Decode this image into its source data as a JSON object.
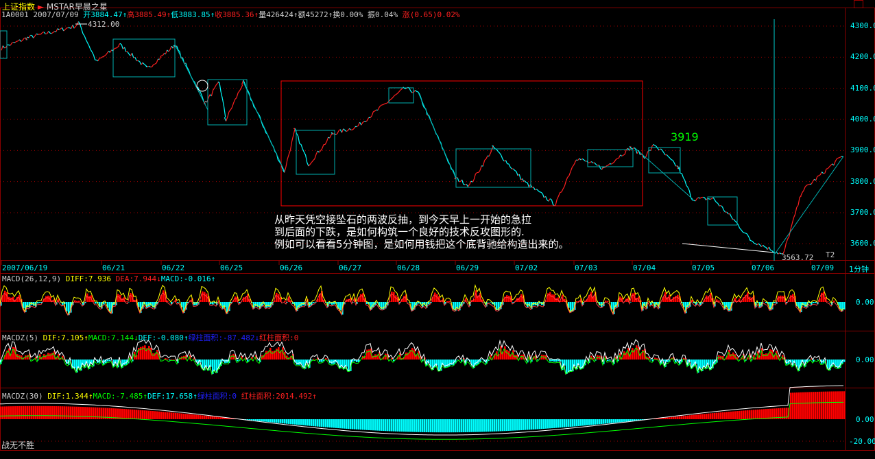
{
  "header": {
    "index_name": "上证指数",
    "formula": "MSTAR早晨之星",
    "code": "1A0001",
    "date": "2007/07/09",
    "open_label": "开",
    "open": "3884.47",
    "high_label": "高",
    "high": "3885.49",
    "low_label": "低",
    "low": "3883.85",
    "close_label": "收",
    "close": "3885.36",
    "vol_label": "量",
    "vol": "426424",
    "amt_label": "额",
    "amt": "45272",
    "turnover": "换0.00%",
    "amplitude": "振0.04%",
    "change": "涨(0.65)0.02%",
    "up_arrow": "↑",
    "down_arrow": "↓"
  },
  "main_chart": {
    "price_axis": [
      "4300.0",
      "4200.0",
      "4100.0",
      "4000.0",
      "3900.0",
      "3800.0",
      "3700.0",
      "3600.0"
    ],
    "high_marker": "4312.00",
    "low_marker": "3563.72",
    "annotation_3919": "3919",
    "t2_label": "T2",
    "period": "1分钟",
    "note_lines": [
      "从昨天凭空接坠石的两波反抽，到今天早上一开始的急拉",
      "到后面的下跌，是如何构筑一个良好的技术反攻图形的.",
      "例如可以看看5分钟图，是如何用钱把这个底背驰给构造出来的。"
    ]
  },
  "date_axis": [
    "2007/06/19",
    "06/21",
    "06/22",
    "06/25",
    "06/26",
    "06/27",
    "06/28",
    "06/29",
    "07/02",
    "07/03",
    "07/04",
    "07/05",
    "07/06",
    "07/09"
  ],
  "macd": {
    "name": "MACD(26,12,9)",
    "diff": "DIFF:7.936",
    "dea": "DEA:7.944",
    "macd": "MACD:-0.016",
    "axis": "0.00"
  },
  "macdz5": {
    "name": "MACDZ(5)",
    "dif": "DIF:7.105",
    "macd": "MACD:7.144",
    "def": "DEF:-0.080",
    "green_area": "绿柱面积:-87.482",
    "red_area": "红柱面积:0",
    "axis": "0.00"
  },
  "macdz30": {
    "name": "MACDZ(30)",
    "dif": "DIF:1.344",
    "macd": "MACD:-7.485",
    "def": "DEF:17.658",
    "green_area": "绿柱面积:0",
    "red_area": "红柱面积:2014.492",
    "axis0": "0.00",
    "axis1": "-20.00"
  },
  "footer": {
    "motto": "战无不胜"
  },
  "chart_data": {
    "type": "line",
    "title": "上证指数 1分钟",
    "ylim": [
      3540,
      4330
    ],
    "series": [
      {
        "points": [
          {
            "day": "2007/06/19",
            "frac": 0.0,
            "price": 4229
          },
          {
            "day": "2007/06/19",
            "frac": 0.26,
            "price": 4262
          },
          {
            "day": "2007/06/19",
            "frac": 0.74,
            "price": 4300
          },
          {
            "day": "2007/06/19",
            "frac": 0.77,
            "price": 4312
          },
          {
            "day": "2007/06/19",
            "frac": 0.95,
            "price": 4185
          },
          {
            "day": "06/21",
            "frac": 0.31,
            "price": 4240
          },
          {
            "day": "06/21",
            "frac": 0.77,
            "price": 4163
          },
          {
            "day": "06/22",
            "frac": 0.24,
            "price": 4240
          },
          {
            "day": "06/22",
            "frac": 0.76,
            "price": 4053
          },
          {
            "day": "06/25",
            "frac": 0.0,
            "price": 4119
          },
          {
            "day": "06/25",
            "frac": 0.11,
            "price": 3998
          },
          {
            "day": "06/25",
            "frac": 0.4,
            "price": 4119
          },
          {
            "day": "06/26",
            "frac": 0.09,
            "price": 3832
          },
          {
            "day": "06/26",
            "frac": 0.27,
            "price": 3965
          },
          {
            "day": "06/26",
            "frac": 0.5,
            "price": 3855
          },
          {
            "day": "06/26",
            "frac": 0.91,
            "price": 3954
          },
          {
            "day": "06/27",
            "frac": 0.32,
            "price": 3976
          },
          {
            "day": "06/28",
            "frac": 0.14,
            "price": 4100
          },
          {
            "day": "06/28",
            "frac": 0.37,
            "price": 4085
          },
          {
            "day": "06/29",
            "frac": 0.01,
            "price": 3810
          },
          {
            "day": "06/29",
            "frac": 0.24,
            "price": 3788
          },
          {
            "day": "06/29",
            "frac": 0.65,
            "price": 3910
          },
          {
            "day": "07/02",
            "frac": 0.17,
            "price": 3799
          },
          {
            "day": "07/02",
            "frac": 0.69,
            "price": 3726
          },
          {
            "day": "07/03",
            "frac": 0.04,
            "price": 3876
          },
          {
            "day": "07/03",
            "frac": 0.51,
            "price": 3843
          },
          {
            "day": "07/03",
            "frac": 0.98,
            "price": 3910
          },
          {
            "day": "07/04",
            "frac": 0.21,
            "price": 3880
          },
          {
            "day": "07/04",
            "frac": 0.38,
            "price": 3919
          },
          {
            "day": "07/04",
            "frac": 0.79,
            "price": 3843
          },
          {
            "day": "07/05",
            "frac": 0.02,
            "price": 3744
          },
          {
            "day": "07/05",
            "frac": 0.37,
            "price": 3745
          },
          {
            "day": "07/05",
            "frac": 0.71,
            "price": 3678
          },
          {
            "day": "07/06",
            "frac": 0.0,
            "price": 3612
          },
          {
            "day": "07/06",
            "frac": 0.54,
            "price": 3563.72
          },
          {
            "day": "07/06",
            "frac": 0.86,
            "price": 3770
          },
          {
            "day": "07/09",
            "frac": 0.96,
            "price": 3885.36
          }
        ]
      }
    ]
  },
  "colors": {
    "up": "#ff0000",
    "down": "#00ffff",
    "frame": "#8b0000",
    "grid": "#a00000",
    "box": "#00b0b0"
  }
}
